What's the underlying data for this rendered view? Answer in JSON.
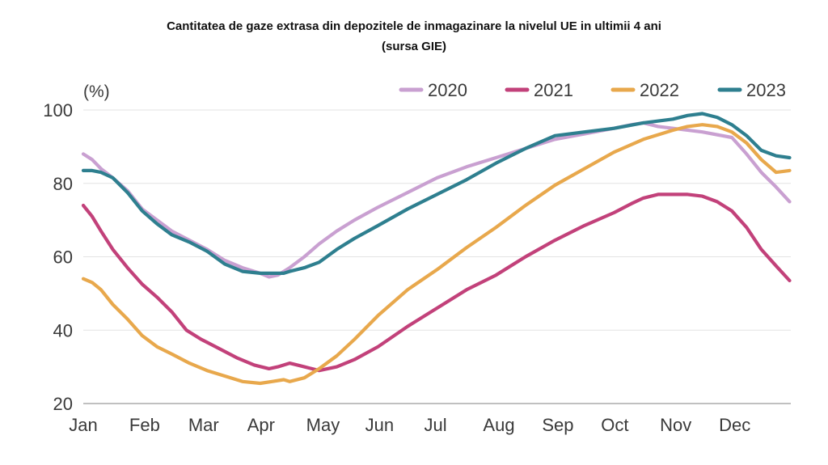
{
  "chart_data": {
    "type": "line",
    "title": "Cantitatea de gaze extrasa din depozitele de inmagazinare la nivelul UE in ultimii 4 ani",
    "subtitle": "(sursa GIE)",
    "ylabel": "(%)",
    "xlabel": "",
    "ylim": [
      20,
      100
    ],
    "xlim": [
      0,
      12
    ],
    "yticks": [
      20,
      40,
      60,
      80,
      100
    ],
    "categories": [
      "Jan",
      "Feb",
      "Mar",
      "Apr",
      "May",
      "Jun",
      "Jul",
      "Aug",
      "Sep",
      "Oct",
      "Nov",
      "Dec"
    ],
    "grid": true,
    "legend_position": "top",
    "series": [
      {
        "name": "2020",
        "color": "#c9a0d1",
        "x": [
          0,
          0.15,
          0.3,
          0.5,
          0.75,
          1.0,
          1.25,
          1.5,
          1.8,
          2.1,
          2.4,
          2.7,
          3.0,
          3.15,
          3.3,
          3.5,
          3.75,
          4.0,
          4.3,
          4.6,
          5.0,
          5.5,
          6.0,
          6.5,
          7.0,
          7.5,
          8.0,
          8.5,
          9.0,
          9.3,
          9.5,
          9.75,
          10.0,
          10.5,
          11.0,
          11.25,
          11.5,
          11.75,
          11.98
        ],
        "y": [
          88,
          86.5,
          84,
          81.5,
          78,
          73,
          70,
          67,
          64.5,
          62,
          59,
          57,
          55.5,
          54.5,
          55,
          57,
          60,
          63.5,
          67,
          70,
          73.5,
          77.5,
          81.5,
          84.5,
          87,
          89.5,
          92,
          93.5,
          95,
          96,
          96.5,
          95.5,
          95,
          94,
          92.5,
          88,
          83,
          79,
          75
        ]
      },
      {
        "name": "2021",
        "color": "#c2417a",
        "x": [
          0,
          0.15,
          0.3,
          0.5,
          0.75,
          1.0,
          1.25,
          1.5,
          1.75,
          2.0,
          2.3,
          2.6,
          2.9,
          3.15,
          3.3,
          3.5,
          3.75,
          4.0,
          4.3,
          4.6,
          5.0,
          5.5,
          6.0,
          6.5,
          7.0,
          7.5,
          8.0,
          8.5,
          9.0,
          9.3,
          9.5,
          9.75,
          10.0,
          10.25,
          10.5,
          10.75,
          11.0,
          11.25,
          11.5,
          11.75,
          11.98
        ],
        "y": [
          74,
          71,
          67,
          62,
          57,
          52.5,
          49,
          45,
          40,
          37.5,
          35,
          32.5,
          30.5,
          29.5,
          30,
          31,
          30,
          29,
          30,
          32,
          35.5,
          41,
          46,
          51,
          55,
          60,
          64.5,
          68.5,
          72,
          74.5,
          76,
          77,
          77,
          77,
          76.5,
          75,
          72.5,
          68,
          62,
          57.5,
          53.5
        ]
      },
      {
        "name": "2022",
        "color": "#e8a84c",
        "x": [
          0,
          0.15,
          0.3,
          0.5,
          0.75,
          1.0,
          1.25,
          1.5,
          1.8,
          2.1,
          2.4,
          2.7,
          3.0,
          3.2,
          3.4,
          3.5,
          3.75,
          4.0,
          4.3,
          4.6,
          5.0,
          5.5,
          6.0,
          6.5,
          7.0,
          7.5,
          8.0,
          8.5,
          9.0,
          9.5,
          10.0,
          10.25,
          10.5,
          10.75,
          11.0,
          11.25,
          11.5,
          11.75,
          11.98
        ],
        "y": [
          54,
          53,
          51,
          47,
          43,
          38.5,
          35.5,
          33.5,
          31,
          29,
          27.5,
          26,
          25.5,
          26,
          26.5,
          26,
          27,
          29.5,
          33,
          37.5,
          44,
          51,
          56.5,
          62.5,
          68,
          74,
          79.5,
          84,
          88.5,
          92,
          94.5,
          95.5,
          96,
          95.5,
          94,
          91,
          86.5,
          83,
          83.5
        ]
      },
      {
        "name": "2023",
        "color": "#2e7f8f",
        "x": [
          0,
          0.15,
          0.3,
          0.5,
          0.75,
          1.0,
          1.25,
          1.5,
          1.8,
          2.1,
          2.4,
          2.7,
          3.0,
          3.2,
          3.4,
          3.5,
          3.75,
          4.0,
          4.3,
          4.6,
          5.0,
          5.5,
          6.0,
          6.5,
          7.0,
          7.5,
          8.0,
          8.5,
          9.0,
          9.5,
          10.0,
          10.25,
          10.5,
          10.75,
          11.0,
          11.25,
          11.5,
          11.75,
          11.98
        ],
        "y": [
          83.5,
          83.5,
          83,
          81.5,
          77.5,
          72.5,
          69,
          66,
          64,
          61.5,
          58,
          56,
          55.5,
          55.5,
          55.5,
          56,
          57,
          58.5,
          62,
          65,
          68.5,
          73,
          77,
          81,
          85.5,
          89.5,
          93,
          94,
          95,
          96.5,
          97.5,
          98.5,
          99,
          98,
          96,
          93,
          89,
          87.5,
          87
        ]
      }
    ]
  }
}
